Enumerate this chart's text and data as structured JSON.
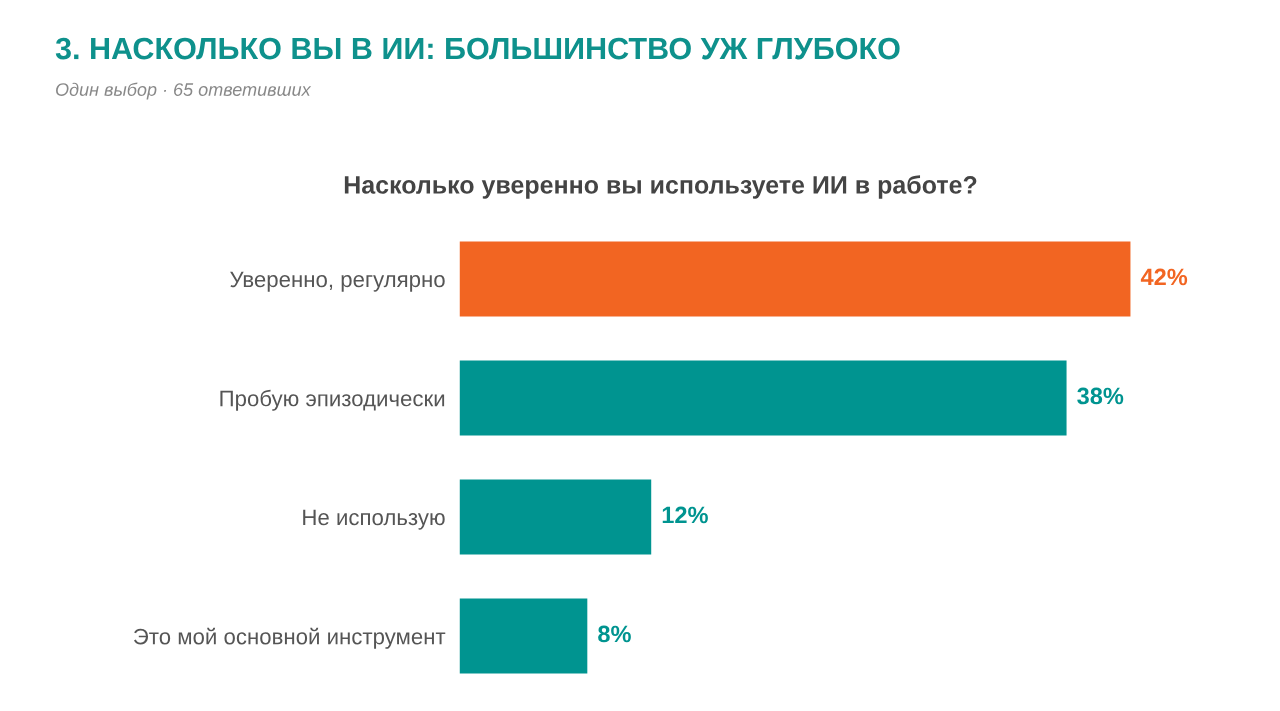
{
  "chart_data": {
    "type": "bar",
    "orientation": "horizontal",
    "title": "3. НАСКОЛЬКО ВЫ В ИИ: БОЛЬШИНСТВО УЖ ГЛУБОКО",
    "subtitle": "Один выбор · 65 ответивших",
    "annotations": [
      "Насколько уверенно вы используете ИИ в работе?"
    ],
    "categories": [
      "Уверенно, регулярно",
      "Пробую эпизодически",
      "Не использую",
      "Это мой основной инструмент"
    ],
    "values": [
      42,
      38,
      12,
      8
    ],
    "colors": [
      "#f26522",
      "#009490",
      "#009490",
      "#009490"
    ],
    "value_labels": [
      "42%",
      "38%",
      "12%",
      "8%"
    ],
    "grid": false,
    "legend": false,
    "tick_labels": "y"
  }
}
